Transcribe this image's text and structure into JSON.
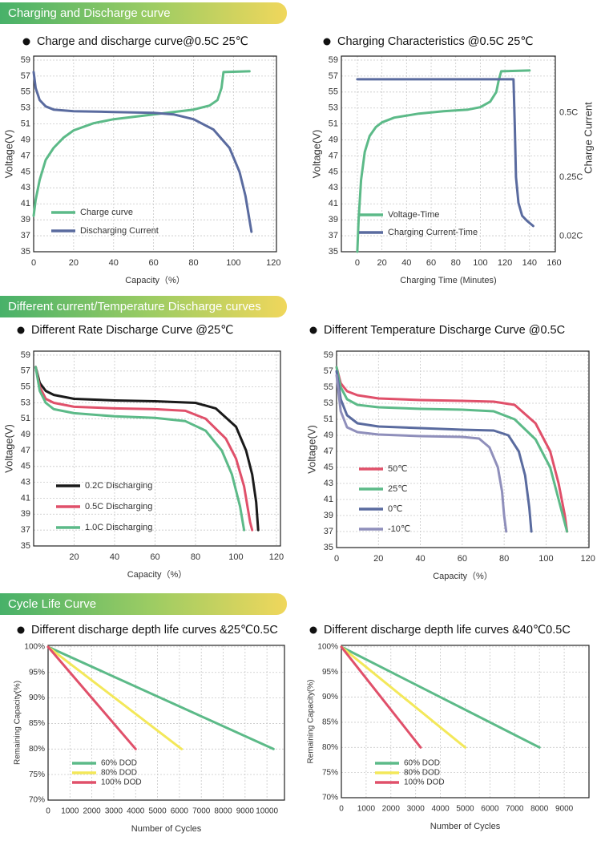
{
  "sections": [
    "Charging and Discharge curve",
    "Different current/Temperature Discharge curves",
    "Cycle Life Curve"
  ],
  "chart_data": [
    {
      "type": "line",
      "title": "Charge and discharge curve@0.5C 25℃",
      "xlabel": "Capacity（%）",
      "ylabel": "Voltage(V)",
      "xlim": [
        0,
        121.5
      ],
      "ylim": [
        35,
        59.5
      ],
      "xticks": [
        0,
        20,
        40,
        60,
        80,
        100,
        120
      ],
      "yticks": [
        35,
        37,
        39,
        41,
        43,
        45,
        47,
        49,
        51,
        53,
        55,
        57,
        59
      ],
      "grid": true,
      "legend": "lower left",
      "series": [
        {
          "name": "Charge curve",
          "color": "#5cba88",
          "x": [
            0,
            1,
            3,
            6,
            10,
            15,
            20,
            30,
            40,
            50,
            60,
            70,
            80,
            88,
            92,
            94,
            95,
            108
          ],
          "values": [
            39.5,
            41.5,
            44,
            46.5,
            48,
            49.3,
            50.2,
            51.1,
            51.6,
            51.9,
            52.2,
            52.5,
            52.8,
            53.3,
            54,
            55.5,
            57.5,
            57.6
          ]
        },
        {
          "name": "Discharging Current",
          "color": "#5a6b9f",
          "x": [
            0,
            1,
            3,
            6,
            10,
            20,
            40,
            60,
            70,
            80,
            90,
            98,
            103,
            106,
            108,
            109
          ],
          "values": [
            57.5,
            55.5,
            54,
            53.2,
            52.8,
            52.6,
            52.5,
            52.4,
            52.2,
            51.6,
            50.3,
            48,
            45,
            42,
            39,
            37.5
          ]
        }
      ]
    },
    {
      "type": "line",
      "title": "Charging Characteristics @0.5C 25℃",
      "xlabel": "Charging Time (Minutes)",
      "ylabel": "Voltage(V)",
      "y2label": "Charge Current",
      "xlim": [
        -13,
        161
      ],
      "ylim": [
        35,
        59.5
      ],
      "y2lim": [
        -0.04,
        0.72
      ],
      "xticks": [
        0,
        20,
        40,
        60,
        80,
        100,
        120,
        140,
        160
      ],
      "yticks": [
        35,
        37,
        39,
        41,
        43,
        45,
        47,
        49,
        51,
        53,
        55,
        57,
        59
      ],
      "y2ticks": [
        {
          "value": 0.02,
          "label": "0.02C"
        },
        {
          "value": 0.25,
          "label": "0.25C"
        },
        {
          "value": 0.5,
          "label": "0.5C"
        }
      ],
      "grid": true,
      "legend": "lower left",
      "series": [
        {
          "name": "Voltage-Time",
          "color": "#5cba88",
          "x": [
            0,
            1,
            3,
            6,
            10,
            15,
            20,
            30,
            50,
            70,
            90,
            100,
            108,
            113,
            115,
            117,
            140
          ],
          "values": [
            35,
            39,
            44,
            47.5,
            49.5,
            50.6,
            51.2,
            51.8,
            52.3,
            52.6,
            52.8,
            53.1,
            53.8,
            55,
            56.5,
            57.6,
            57.7
          ]
        },
        {
          "name": "Charging Current-Time",
          "color": "#5a6b9f",
          "axis": "y2",
          "x": [
            0,
            127,
            128,
            129,
            131,
            134,
            138,
            143
          ],
          "values": [
            0.63,
            0.63,
            0.45,
            0.25,
            0.15,
            0.1,
            0.08,
            0.06
          ]
        }
      ]
    },
    {
      "type": "line",
      "title": "Different Rate Discharge Curve @25℃",
      "xlabel": "Capacity（%）",
      "ylabel": "Voltage(V)",
      "xlim": [
        0,
        122
      ],
      "ylim": [
        35,
        59.5
      ],
      "xticks": [
        20,
        40,
        60,
        80,
        100,
        120
      ],
      "yticks": [
        35,
        37,
        39,
        41,
        43,
        45,
        47,
        49,
        51,
        53,
        55,
        57,
        59
      ],
      "grid": true,
      "legend": "lower left",
      "series": [
        {
          "name": "0.2C Discharging",
          "color": "#1a1a1a",
          "x": [
            1,
            3,
            6,
            10,
            20,
            40,
            60,
            80,
            90,
            100,
            105,
            108,
            110,
            111
          ],
          "values": [
            57.5,
            55.5,
            54.5,
            54,
            53.5,
            53.3,
            53.2,
            53,
            52.3,
            50,
            47,
            44,
            40.5,
            37
          ]
        },
        {
          "name": "0.5C Discharging",
          "color": "#e0506a",
          "x": [
            1,
            3,
            6,
            10,
            20,
            40,
            60,
            75,
            85,
            95,
            100,
            104,
            107,
            108
          ],
          "values": [
            57.5,
            55,
            53.5,
            53,
            52.5,
            52.3,
            52.2,
            52,
            51,
            48.5,
            46,
            42.5,
            38,
            37
          ]
        },
        {
          "name": "1.0C Discharging",
          "color": "#5cba88",
          "x": [
            1,
            3,
            6,
            10,
            20,
            40,
            60,
            75,
            85,
            93,
            98,
            102,
            104
          ],
          "values": [
            57.5,
            54.5,
            53,
            52.2,
            51.7,
            51.3,
            51.1,
            50.7,
            49.5,
            47,
            44,
            40,
            37
          ]
        }
      ]
    },
    {
      "type": "line",
      "title": "Different Temperature Discharge Curve @0.5C",
      "xlabel": "Capacity（%）",
      "ylabel": "Voltage(V)",
      "xlim": [
        0,
        120.5
      ],
      "ylim": [
        35,
        59.5
      ],
      "xticks": [
        0,
        20,
        40,
        60,
        80,
        100,
        120
      ],
      "yticks": [
        35,
        37,
        39,
        41,
        43,
        45,
        47,
        49,
        51,
        53,
        55,
        57,
        59
      ],
      "grid": true,
      "legend": "lower left",
      "series": [
        {
          "name": "50℃",
          "color": "#e0506a",
          "x": [
            0,
            2,
            5,
            10,
            20,
            40,
            60,
            75,
            85,
            95,
            102,
            106,
            109,
            110
          ],
          "values": [
            57.5,
            55.5,
            54.5,
            54,
            53.6,
            53.4,
            53.3,
            53.2,
            52.8,
            50.5,
            47,
            43,
            39,
            37
          ]
        },
        {
          "name": "25℃",
          "color": "#5cba88",
          "x": [
            0,
            2,
            5,
            10,
            20,
            40,
            60,
            75,
            85,
            95,
            102,
            106,
            110
          ],
          "values": [
            57.5,
            55,
            53.5,
            52.8,
            52.5,
            52.3,
            52.2,
            52,
            51,
            48.5,
            45,
            41,
            37
          ]
        },
        {
          "name": "0℃",
          "color": "#5a6b9f",
          "x": [
            0,
            2,
            5,
            10,
            20,
            40,
            60,
            75,
            82,
            87,
            90,
            92,
            93
          ],
          "values": [
            57,
            53.5,
            51.5,
            50.5,
            50.1,
            49.9,
            49.7,
            49.6,
            49,
            47,
            44,
            40,
            37
          ]
        },
        {
          "name": "-10℃",
          "color": "#8f8fbb",
          "x": [
            0,
            2,
            5,
            10,
            20,
            40,
            60,
            68,
            73,
            77,
            79,
            80,
            81
          ],
          "values": [
            56.5,
            52,
            50,
            49.4,
            49.1,
            48.9,
            48.8,
            48.6,
            47.5,
            45,
            42,
            39,
            37
          ]
        }
      ]
    },
    {
      "type": "line",
      "title": "Different discharge depth life curves &25℃0.5C",
      "xlabel": "Number of Cycles",
      "ylabel": "Remaining Capacity(%)",
      "xlim": [
        0,
        10800
      ],
      "ylim": [
        70,
        100.3
      ],
      "xticks": [
        0,
        1000,
        2000,
        3000,
        4000,
        5000,
        6000,
        7000,
        8000,
        9000,
        10000
      ],
      "yticks": [
        {
          "value": 70,
          "label": "70%"
        },
        {
          "value": 75,
          "label": "75%"
        },
        {
          "value": 80,
          "label": "80%"
        },
        {
          "value": 85,
          "label": "85%"
        },
        {
          "value": 90,
          "label": "90%"
        },
        {
          "value": 95,
          "label": "95%"
        },
        {
          "value": 100,
          "label": "100%"
        }
      ],
      "grid": true,
      "legend": "lower left",
      "series": [
        {
          "name": "60% DOD",
          "color": "#5cba88",
          "x": [
            0,
            10300
          ],
          "values": [
            100,
            80
          ]
        },
        {
          "name": "80% DOD",
          "color": "#f3e85a",
          "x": [
            0,
            6100
          ],
          "values": [
            100,
            80
          ]
        },
        {
          "name": "100% DOD",
          "color": "#e0506a",
          "x": [
            0,
            4000
          ],
          "values": [
            100,
            80
          ]
        }
      ]
    },
    {
      "type": "line",
      "title": "Different discharge depth life curves &40℃0.5C",
      "xlabel": "Number of Cycles",
      "ylabel": "Remaining Capacity(%)",
      "xlim": [
        0,
        10000
      ],
      "ylim": [
        70,
        100.3
      ],
      "xticks": [
        0,
        1000,
        2000,
        3000,
        4000,
        5000,
        6000,
        7000,
        8000,
        9000
      ],
      "yticks": [
        {
          "value": 70,
          "label": "70%"
        },
        {
          "value": 75,
          "label": "75%"
        },
        {
          "value": 80,
          "label": "80%"
        },
        {
          "value": 85,
          "label": "85%"
        },
        {
          "value": 90,
          "label": "90%"
        },
        {
          "value": 95,
          "label": "95%"
        },
        {
          "value": 100,
          "label": "100%"
        }
      ],
      "grid": true,
      "legend": "lower left",
      "series": [
        {
          "name": "60% DOD",
          "color": "#5cba88",
          "x": [
            0,
            8000
          ],
          "values": [
            100,
            80
          ]
        },
        {
          "name": "80% DOD",
          "color": "#f3e85a",
          "x": [
            0,
            5000
          ],
          "values": [
            100,
            80
          ]
        },
        {
          "name": "100% DOD",
          "color": "#e0506a",
          "x": [
            0,
            3200
          ],
          "values": [
            100,
            80
          ]
        }
      ]
    }
  ]
}
